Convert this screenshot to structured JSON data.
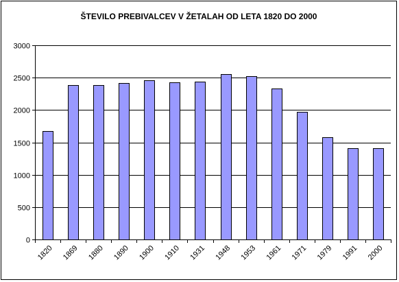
{
  "chart_data": {
    "type": "bar",
    "title": "ŠTEVILO PREBIVALCEV V ŽETALAH OD LETA 1820 DO 2000",
    "xlabel": "",
    "ylabel": "",
    "categories": [
      "1820",
      "1869",
      "1880",
      "1890",
      "1900",
      "1910",
      "1931",
      "1948",
      "1953",
      "1961",
      "1971",
      "1979",
      "1991",
      "2000"
    ],
    "values": [
      1670,
      2390,
      2390,
      2420,
      2455,
      2430,
      2440,
      2550,
      2525,
      2335,
      1975,
      1575,
      1415,
      1415
    ],
    "ylim": [
      0,
      3000
    ],
    "yticks": [
      "0",
      "500",
      "1000",
      "1500",
      "2000",
      "2500",
      "3000"
    ],
    "grid": true,
    "legend": "none",
    "colors": {
      "bar_fill": "#9999ff",
      "bar_stroke": "#000000",
      "gridline": "#000000",
      "background": "#ffffff"
    }
  }
}
